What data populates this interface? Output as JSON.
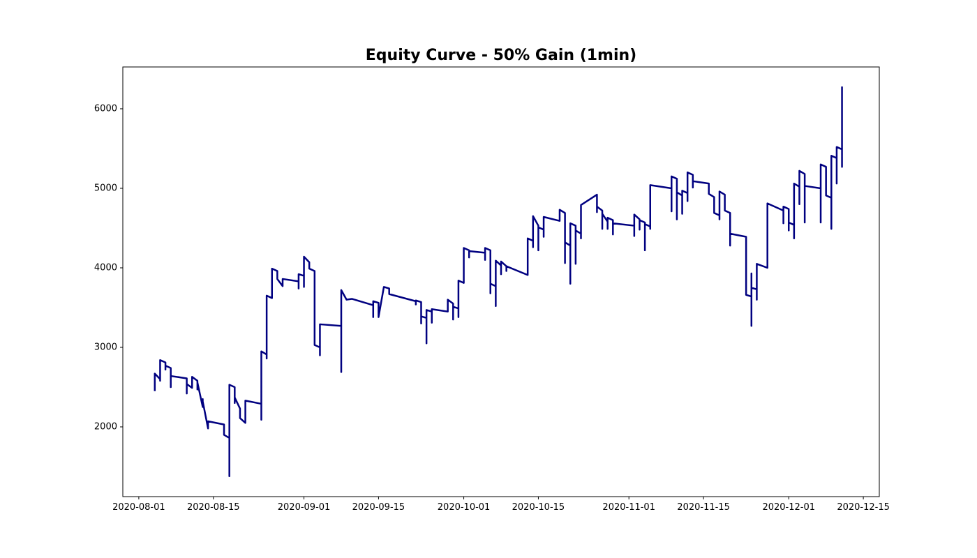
{
  "chart_data": {
    "type": "line",
    "title": "Equity Curve - 50% Gain (1min)",
    "color": "#000080",
    "x": [
      "2020-08-04",
      "2020-08-04",
      "2020-08-04",
      "2020-08-05",
      "2020-08-05",
      "2020-08-05",
      "2020-08-06",
      "2020-08-06",
      "2020-08-06",
      "2020-08-07",
      "2020-08-07",
      "2020-08-07",
      "2020-08-10",
      "2020-08-10",
      "2020-08-10",
      "2020-08-11",
      "2020-08-11",
      "2020-08-12",
      "2020-08-12",
      "2020-08-12",
      "2020-08-13",
      "2020-08-13",
      "2020-08-13",
      "2020-08-14",
      "2020-08-14",
      "2020-08-17",
      "2020-08-17",
      "2020-08-18",
      "2020-08-18",
      "2020-08-18",
      "2020-08-19",
      "2020-08-19",
      "2020-08-19",
      "2020-08-20",
      "2020-08-20",
      "2020-08-21",
      "2020-08-21",
      "2020-08-24",
      "2020-08-24",
      "2020-08-24",
      "2020-08-25",
      "2020-08-25",
      "2020-08-25",
      "2020-08-26",
      "2020-08-26",
      "2020-08-27",
      "2020-08-27",
      "2020-08-28",
      "2020-08-28",
      "2020-08-31",
      "2020-08-31",
      "2020-08-31",
      "2020-09-01",
      "2020-09-01",
      "2020-09-01",
      "2020-09-02",
      "2020-09-02",
      "2020-09-03",
      "2020-09-03",
      "2020-09-04",
      "2020-09-04",
      "2020-09-04",
      "2020-09-08",
      "2020-09-08",
      "2020-09-08",
      "2020-09-09",
      "2020-09-10",
      "2020-09-14",
      "2020-09-14",
      "2020-09-14",
      "2020-09-15",
      "2020-09-15",
      "2020-09-16",
      "2020-09-17",
      "2020-09-17",
      "2020-09-22",
      "2020-09-22",
      "2020-09-22",
      "2020-09-23",
      "2020-09-23",
      "2020-09-23",
      "2020-09-24",
      "2020-09-24",
      "2020-09-24",
      "2020-09-25",
      "2020-09-25",
      "2020-09-25",
      "2020-09-28",
      "2020-09-28",
      "2020-09-29",
      "2020-09-29",
      "2020-09-29",
      "2020-09-30",
      "2020-09-30",
      "2020-09-30",
      "2020-10-01",
      "2020-10-01",
      "2020-10-02",
      "2020-10-02",
      "2020-10-02",
      "2020-10-05",
      "2020-10-05",
      "2020-10-05",
      "2020-10-06",
      "2020-10-06",
      "2020-10-06",
      "2020-10-07",
      "2020-10-07",
      "2020-10-07",
      "2020-10-08",
      "2020-10-08",
      "2020-10-08",
      "2020-10-09",
      "2020-10-09",
      "2020-10-09",
      "2020-10-13",
      "2020-10-13",
      "2020-10-14",
      "2020-10-14",
      "2020-10-14",
      "2020-10-15",
      "2020-10-15",
      "2020-10-15",
      "2020-10-16",
      "2020-10-16",
      "2020-10-16",
      "2020-10-19",
      "2020-10-19",
      "2020-10-20",
      "2020-10-20",
      "2020-10-20",
      "2020-10-21",
      "2020-10-21",
      "2020-10-21",
      "2020-10-22",
      "2020-10-22",
      "2020-10-22",
      "2020-10-23",
      "2020-10-23",
      "2020-10-23",
      "2020-10-26",
      "2020-10-26",
      "2020-10-26",
      "2020-10-26",
      "2020-10-27",
      "2020-10-27",
      "2020-10-27",
      "2020-10-28",
      "2020-10-28",
      "2020-10-28",
      "2020-10-29",
      "2020-10-29",
      "2020-10-29",
      "2020-11-02",
      "2020-11-02",
      "2020-11-02",
      "2020-11-03",
      "2020-11-03",
      "2020-11-03",
      "2020-11-04",
      "2020-11-04",
      "2020-11-04",
      "2020-11-05",
      "2020-11-05",
      "2020-11-05",
      "2020-11-09",
      "2020-11-09",
      "2020-11-09",
      "2020-11-10",
      "2020-11-10",
      "2020-11-10",
      "2020-11-11",
      "2020-11-11",
      "2020-11-11",
      "2020-11-12",
      "2020-11-12",
      "2020-11-12",
      "2020-11-13",
      "2020-11-13",
      "2020-11-13",
      "2020-11-16",
      "2020-11-16",
      "2020-11-17",
      "2020-11-17",
      "2020-11-18",
      "2020-11-18",
      "2020-11-18",
      "2020-11-19",
      "2020-11-19",
      "2020-11-20",
      "2020-11-20",
      "2020-11-20",
      "2020-11-23",
      "2020-11-23",
      "2020-11-24",
      "2020-11-24",
      "2020-11-24",
      "2020-11-24",
      "2020-11-25",
      "2020-11-25",
      "2020-11-25",
      "2020-11-27",
      "2020-11-27",
      "2020-11-30",
      "2020-11-30",
      "2020-11-30",
      "2020-12-01",
      "2020-12-01",
      "2020-12-01",
      "2020-12-02",
      "2020-12-02",
      "2020-12-02",
      "2020-12-03",
      "2020-12-03",
      "2020-12-03",
      "2020-12-04",
      "2020-12-04",
      "2020-12-04",
      "2020-12-07",
      "2020-12-07",
      "2020-12-07",
      "2020-12-08",
      "2020-12-08",
      "2020-12-08",
      "2020-12-08",
      "2020-12-09",
      "2020-12-09",
      "2020-12-09",
      "2020-12-10",
      "2020-12-10",
      "2020-12-10",
      "2020-12-11",
      "2020-12-11",
      "2020-12-11"
    ],
    "values": [
      2450,
      2500,
      2670,
      2600,
      2580,
      2840,
      2810,
      2720,
      2770,
      2740,
      2500,
      2640,
      2610,
      2420,
      2540,
      2490,
      2630,
      2580,
      2470,
      2560,
      2250,
      2350,
      2320,
      1980,
      2070,
      2030,
      1900,
      1860,
      1380,
      2530,
      2500,
      2300,
      2370,
      2230,
      2110,
      2050,
      2330,
      2290,
      2090,
      2950,
      2910,
      2860,
      3650,
      3620,
      3990,
      3960,
      3860,
      3770,
      3860,
      3830,
      3740,
      3920,
      3900,
      3760,
      4140,
      4070,
      3990,
      3960,
      3030,
      3000,
      2900,
      3290,
      3270,
      2690,
      3720,
      3600,
      3610,
      3530,
      3380,
      3580,
      3560,
      3380,
      3760,
      3740,
      3670,
      3580,
      3540,
      3590,
      3570,
      3300,
      3390,
      3370,
      3050,
      3470,
      3450,
      3310,
      3480,
      3450,
      3600,
      3550,
      3350,
      3510,
      3490,
      3380,
      3840,
      3810,
      4250,
      4220,
      4130,
      4210,
      4190,
      4100,
      4250,
      4220,
      3680,
      3800,
      3770,
      3520,
      4090,
      4030,
      3920,
      4080,
      4020,
      3960,
      4020,
      3910,
      4370,
      4340,
      4260,
      4650,
      4530,
      4220,
      4510,
      4480,
      4390,
      4640,
      4590,
      4730,
      4690,
      4060,
      4320,
      4280,
      3800,
      4560,
      4530,
      4050,
      4470,
      4430,
      4370,
      4790,
      4920,
      4830,
      4700,
      4770,
      4720,
      4490,
      4680,
      4580,
      4490,
      4630,
      4600,
      4420,
      4560,
      4530,
      4400,
      4670,
      4610,
      4480,
      4600,
      4570,
      4220,
      4550,
      4520,
      4490,
      5040,
      5000,
      4710,
      5150,
      5120,
      4610,
      4950,
      4910,
      4680,
      4970,
      4940,
      4840,
      5200,
      5170,
      5010,
      5090,
      5060,
      4930,
      4890,
      4690,
      4660,
      4610,
      4960,
      4920,
      4720,
      4690,
      4280,
      4430,
      4390,
      3660,
      3640,
      3270,
      3930,
      3750,
      3730,
      3600,
      4050,
      4000,
      4810,
      4720,
      4560,
      4770,
      4740,
      4470,
      4570,
      4540,
      4370,
      5060,
      5020,
      4800,
      5220,
      5180,
      4570,
      5030,
      5000,
      4570,
      5300,
      5270,
      4920,
      5110,
      4910,
      4880,
      4490,
      5410,
      5380,
      5060,
      5520,
      5490,
      5270,
      6280
    ],
    "xlim": [
      "2020-07-29",
      "2020-12-18"
    ],
    "xticks": [
      "2020-08-01",
      "2020-08-15",
      "2020-09-01",
      "2020-09-15",
      "2020-10-01",
      "2020-10-15",
      "2020-11-01",
      "2020-11-15",
      "2020-12-01",
      "2020-12-15"
    ],
    "ylim": [
      1123,
      6526
    ],
    "yticks": [
      2000,
      3000,
      4000,
      5000,
      6000
    ]
  }
}
